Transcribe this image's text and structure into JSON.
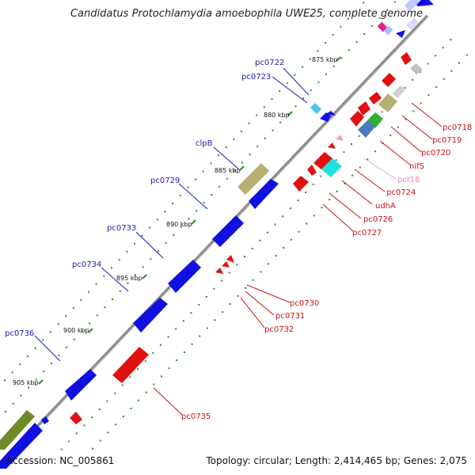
{
  "title": "Candidatus Protochlamydia amoebophila UWE25, complete genome",
  "accession": "Accession: NC_005861",
  "summary": "Topology: circular; Length: 2,414,465 bp; Genes: 2,075",
  "colors": {
    "backbone": "#8c8c8c",
    "tick": "#2e8b2e",
    "forward": "#1010e0",
    "reverse": "#e01010",
    "forward_label": "#1a1ab0",
    "reverse_label": "#cc1111",
    "pink_label": "#e888b8"
  },
  "ticks": [
    "875 kbp",
    "880 kbp",
    "885 kbp",
    "890 kbp",
    "895 kbp",
    "900 kbp",
    "905 kbp"
  ],
  "forward_labels": [
    "pc0722",
    "pc0723",
    "clpB",
    "pc0729",
    "pc0733",
    "pc0734",
    "pc0736"
  ],
  "reverse_labels": [
    "pc0718",
    "pc0719",
    "pc0720",
    "nifS",
    "pct18",
    "pc0724",
    "udhA",
    "pc0726",
    "pc0727",
    "pc0730",
    "pc0731",
    "pc0732",
    "pc0735"
  ]
}
